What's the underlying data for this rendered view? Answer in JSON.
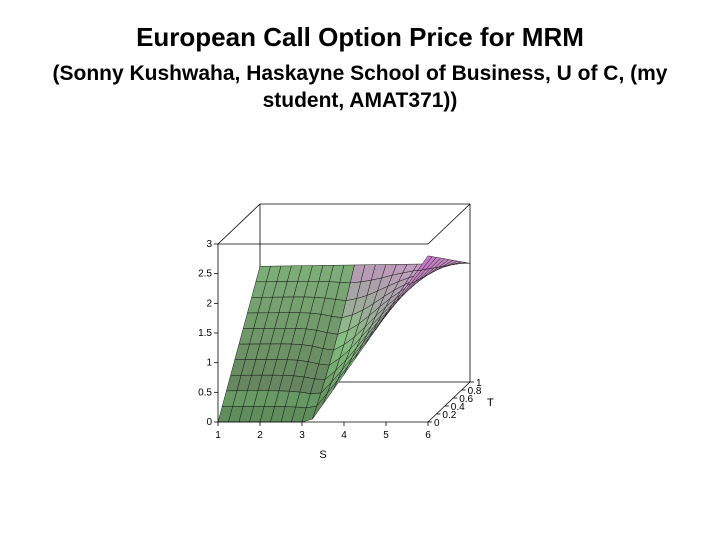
{
  "title": "European Call Option Price for MRM",
  "subtitle": "(Sonny Kushwaha, Haskayne School of Business, U of C, (my student, AMAT371))",
  "chart_data": {
    "type": "surface3d",
    "title": "European Call Option Price for MRM",
    "xlabel": "S",
    "ylabel": "T",
    "zlabel": "",
    "xlim": [
      1,
      6
    ],
    "ylim": [
      0,
      1
    ],
    "zlim": [
      0,
      3
    ],
    "x_ticks": [
      "1",
      "2",
      "3",
      "4",
      "5",
      "6"
    ],
    "y_ticks": [
      "0",
      "0.2",
      "0.4",
      "0.6",
      "0.8",
      "1"
    ],
    "z_ticks": [
      "0",
      "0.5",
      "1",
      "1.5",
      "2",
      "2.5",
      "3"
    ],
    "grid": {
      "S": [
        1,
        1.25,
        1.5,
        1.75,
        2,
        2.25,
        2.5,
        2.75,
        3,
        3.25,
        3.5,
        3.75,
        4,
        4.25,
        4.5,
        4.75,
        5,
        5.25,
        5.5,
        5.75,
        6
      ],
      "T": [
        0,
        0.1,
        0.2,
        0.3,
        0.4,
        0.5,
        0.6,
        0.7,
        0.8,
        0.9,
        1
      ]
    },
    "surface": {
      "at_T0": "max(0, S - 3.2)",
      "at_T1": "approximately 1.95 for all S",
      "description_values": [
        {
          "S": 1,
          "T": 0,
          "price": 0
        },
        {
          "S": 3,
          "T": 0,
          "price": 0
        },
        {
          "S": 6,
          "T": 0,
          "price": 2.8
        },
        {
          "S": 1,
          "T": 1,
          "price": 1.95
        },
        {
          "S": 6,
          "T": 1,
          "price": 2.0
        }
      ]
    },
    "colormap": [
      "#5f8f5c",
      "#8fce8a",
      "#c9a0c8",
      "#e070e0"
    ]
  }
}
